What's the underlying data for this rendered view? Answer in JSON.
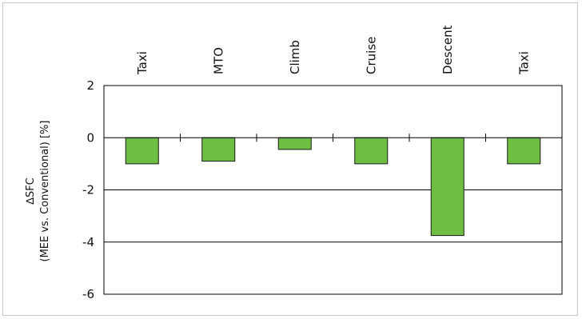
{
  "chart_data": {
    "type": "bar",
    "categories": [
      "Taxi",
      "MTO",
      "Climb",
      "Cruise",
      "Descent",
      "Taxi"
    ],
    "values": [
      -1.0,
      -0.9,
      -0.45,
      -1.0,
      -3.75,
      -1.0
    ],
    "ylabel_line1": "∆SFC",
    "ylabel_line2": "(MEE vs. Conventional) [%]",
    "xlabel": "",
    "title": "",
    "ylim": [
      -6,
      2
    ],
    "yticks": [
      "2",
      "0",
      "-2",
      "-4",
      "-6"
    ],
    "ytick_values": [
      2,
      0,
      -2,
      -4,
      -6
    ],
    "grid": "horizontal",
    "bar_color": "#6fbe44",
    "bar_stroke": "#1a1a1a"
  }
}
